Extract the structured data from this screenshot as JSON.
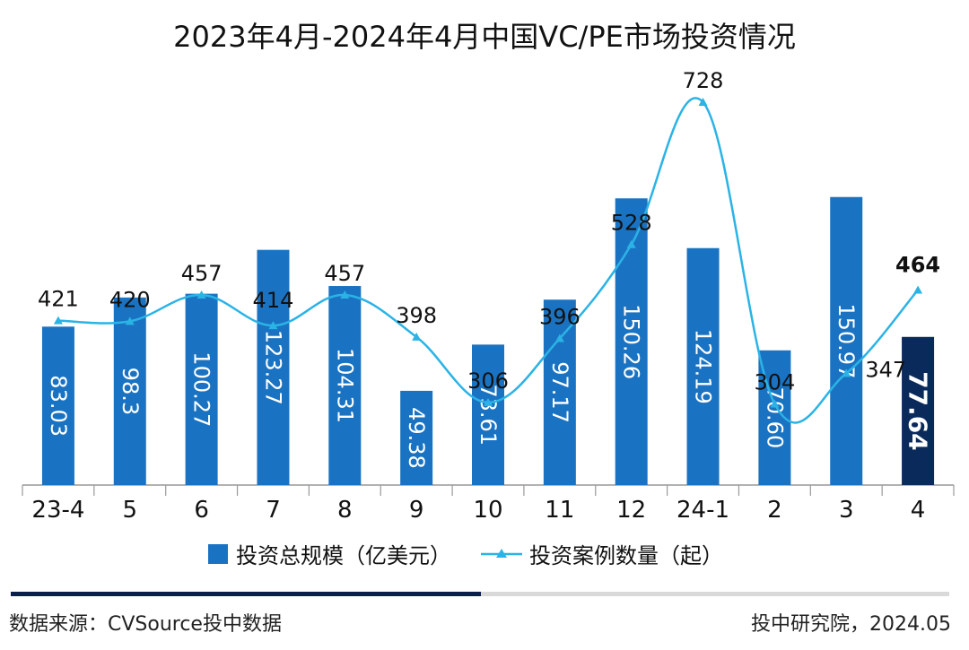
{
  "chart_data": {
    "type": "bar",
    "title": "2023年4月-2024年4月中国VC/PE市场投资情况",
    "categories": [
      "23-4",
      "5",
      "6",
      "7",
      "8",
      "9",
      "10",
      "11",
      "12",
      "24-1",
      "2",
      "3",
      "4"
    ],
    "series": [
      {
        "name": "投资总规模（亿美元）",
        "type": "bar",
        "values": [
          83.03,
          98.3,
          100.27,
          123.27,
          104.31,
          49.38,
          73.61,
          97.17,
          150.26,
          124.19,
          70.6,
          150.97,
          77.64
        ],
        "labels": [
          "83.03",
          "98.3",
          "100.27",
          "123.27",
          "104.31",
          "49.38",
          "73.61",
          "97.17",
          "150.26",
          "124.19",
          "70.60",
          "150.97",
          "77.64"
        ],
        "color": "#1a73c2",
        "highlight_color": "#0b2a5c",
        "highlight_index": 12
      },
      {
        "name": "投资案例数量（起）",
        "type": "line",
        "smooth": true,
        "values": [
          421,
          420,
          457,
          414,
          457,
          398,
          306,
          396,
          528,
          728,
          304,
          347,
          464
        ],
        "labels": [
          "421",
          "420",
          "457",
          "414",
          "457",
          "398",
          "306",
          "396",
          "528",
          "728",
          "304",
          "347",
          "464"
        ],
        "color": "#2bb3e6",
        "highlight_index": 12
      }
    ],
    "legend_position": "bottom",
    "grid": false
  },
  "footer": {
    "source": "数据来源：CVSource投中数据",
    "credit": "投中研究院，2024.05"
  },
  "colors": {
    "bar": "#1a73c2",
    "bar_highlight": "#0b2a5c",
    "line": "#2bb3e6",
    "rule_dark": "#0b1f4d",
    "rule_light": "#d9d9d9"
  }
}
